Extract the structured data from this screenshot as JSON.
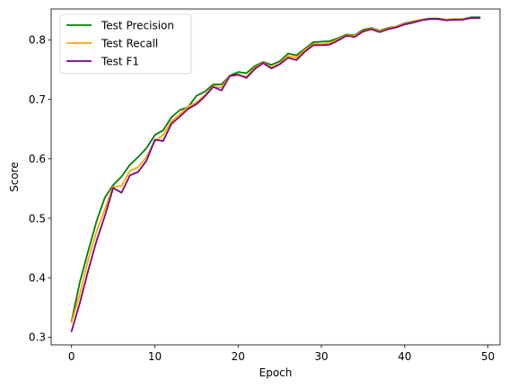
{
  "chart_data": {
    "type": "line",
    "title": "",
    "xlabel": "Epoch",
    "ylabel": "Score",
    "xlim": [
      -2.45,
      51.45
    ],
    "ylim": [
      0.287,
      0.852
    ],
    "xticks": [
      0,
      10,
      20,
      30,
      40,
      50
    ],
    "yticks": [
      0.3,
      0.4,
      0.5,
      0.6,
      0.7,
      0.8
    ],
    "xtick_labels": [
      "0",
      "10",
      "20",
      "30",
      "40",
      "50"
    ],
    "ytick_labels": [
      "0.3",
      "0.4",
      "0.5",
      "0.6",
      "0.7",
      "0.8"
    ],
    "grid": false,
    "legend_position": "top-left",
    "x": [
      0,
      1,
      2,
      3,
      4,
      5,
      6,
      7,
      8,
      9,
      10,
      11,
      12,
      13,
      14,
      15,
      16,
      17,
      18,
      19,
      20,
      21,
      22,
      23,
      24,
      25,
      26,
      27,
      28,
      29,
      30,
      31,
      32,
      33,
      34,
      35,
      36,
      37,
      38,
      39,
      40,
      41,
      42,
      43,
      44,
      45,
      46,
      47,
      48,
      49
    ],
    "series": [
      {
        "name": "Test Precision",
        "color": "#008000",
        "values": [
          0.327,
          0.393,
          0.445,
          0.495,
          0.535,
          0.556,
          0.57,
          0.59,
          0.603,
          0.618,
          0.64,
          0.648,
          0.67,
          0.682,
          0.687,
          0.706,
          0.713,
          0.725,
          0.725,
          0.74,
          0.746,
          0.744,
          0.756,
          0.763,
          0.758,
          0.764,
          0.777,
          0.774,
          0.785,
          0.796,
          0.797,
          0.798,
          0.803,
          0.809,
          0.808,
          0.817,
          0.82,
          0.816,
          0.82,
          0.823,
          0.828,
          0.831,
          0.834,
          0.836,
          0.836,
          0.834,
          0.835,
          0.835,
          0.838,
          0.838
        ]
      },
      {
        "name": "Test Recall",
        "color": "#ffa500",
        "values": [
          0.325,
          0.373,
          0.43,
          0.478,
          0.515,
          0.553,
          0.554,
          0.58,
          0.586,
          0.603,
          0.63,
          0.64,
          0.663,
          0.675,
          0.688,
          0.695,
          0.707,
          0.722,
          0.72,
          0.74,
          0.74,
          0.738,
          0.753,
          0.762,
          0.754,
          0.76,
          0.773,
          0.77,
          0.783,
          0.793,
          0.793,
          0.795,
          0.801,
          0.808,
          0.807,
          0.815,
          0.819,
          0.815,
          0.819,
          0.823,
          0.827,
          0.83,
          0.834,
          0.835,
          0.835,
          0.834,
          0.835,
          0.835,
          0.837,
          0.837
        ]
      },
      {
        "name": "Test F1",
        "color": "#800080",
        "values": [
          0.31,
          0.358,
          0.412,
          0.462,
          0.504,
          0.551,
          0.543,
          0.572,
          0.578,
          0.597,
          0.632,
          0.63,
          0.659,
          0.671,
          0.684,
          0.692,
          0.705,
          0.721,
          0.715,
          0.739,
          0.742,
          0.736,
          0.751,
          0.761,
          0.752,
          0.759,
          0.77,
          0.766,
          0.78,
          0.791,
          0.791,
          0.792,
          0.799,
          0.807,
          0.805,
          0.814,
          0.818,
          0.813,
          0.818,
          0.821,
          0.826,
          0.829,
          0.833,
          0.835,
          0.835,
          0.833,
          0.834,
          0.834,
          0.837,
          0.837
        ]
      }
    ]
  }
}
